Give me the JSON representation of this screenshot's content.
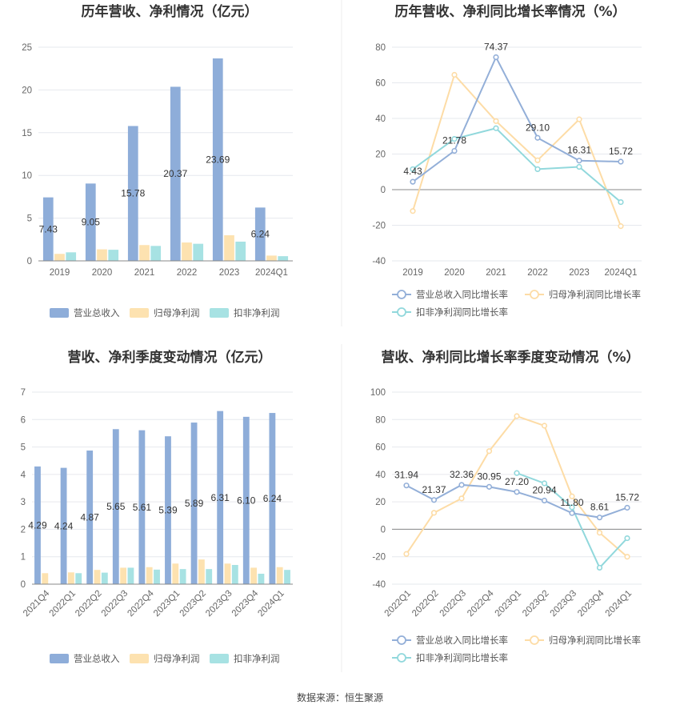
{
  "source_text": "数据来源：恒生聚源",
  "colors": {
    "revenue": "#8eadd9",
    "net_profit": "#fde2b0",
    "deducted": "#a7e2e3",
    "revenue_line": "#93afd8",
    "net_line": "#fddca6",
    "deducted_line": "#91d8dc",
    "grid": "#e6e8ee",
    "axis": "#888888"
  },
  "chart_data": [
    {
      "type": "bar",
      "title": "历年营收、净利情况（亿元）",
      "categories": [
        "2019",
        "2020",
        "2021",
        "2022",
        "2023",
        "2024Q1"
      ],
      "ylim": [
        0,
        25
      ],
      "yticks": [
        0,
        5,
        10,
        15,
        20,
        25
      ],
      "grid": true,
      "legend_position": "bottom",
      "series": [
        {
          "name": "营业总收入",
          "values": [
            7.43,
            9.05,
            15.78,
            20.37,
            23.69,
            6.24
          ],
          "labels": [
            "7.43",
            "9.05",
            "15.78",
            "20.37",
            "23.69",
            "6.24"
          ]
        },
        {
          "name": "归母净利润",
          "values": [
            0.82,
            1.35,
            1.85,
            2.15,
            3.0,
            0.62
          ]
        },
        {
          "name": "扣非净利润",
          "values": [
            1.0,
            1.3,
            1.75,
            2.0,
            2.25,
            0.55
          ]
        }
      ]
    },
    {
      "type": "line",
      "title": "历年营收、净利同比增长率情况（%）",
      "categories": [
        "2019",
        "2020",
        "2021",
        "2022",
        "2023",
        "2024Q1"
      ],
      "ylim": [
        -40,
        80
      ],
      "yticks": [
        -40,
        -20,
        0,
        20,
        40,
        60,
        80
      ],
      "grid": true,
      "legend_position": "bottom",
      "series": [
        {
          "name": "营业总收入同比增长率",
          "values": [
            4.43,
            21.78,
            74.37,
            29.1,
            16.31,
            15.72
          ],
          "labels": [
            "4.43",
            "21.78",
            "74.37",
            "29.10",
            "16.31",
            "15.72"
          ]
        },
        {
          "name": "归母净利润同比增长率",
          "values": [
            -12,
            64.5,
            38.5,
            16.5,
            39.5,
            -20.5
          ]
        },
        {
          "name": "扣非净利润同比增长率",
          "values": [
            11.5,
            28.5,
            34.5,
            11.5,
            12.8,
            -7
          ]
        }
      ]
    },
    {
      "type": "bar",
      "title": "营收、净利季度变动情况（亿元）",
      "categories": [
        "2021Q4",
        "2022Q1",
        "2022Q2",
        "2022Q3",
        "2022Q4",
        "2023Q1",
        "2023Q2",
        "2023Q3",
        "2023Q4",
        "2024Q1"
      ],
      "ylim": [
        0,
        7
      ],
      "yticks": [
        0,
        1,
        2,
        3,
        4,
        5,
        6,
        7
      ],
      "grid": true,
      "legend_position": "bottom",
      "series": [
        {
          "name": "营业总收入",
          "values": [
            4.29,
            4.24,
            4.87,
            5.65,
            5.61,
            5.39,
            5.89,
            6.31,
            6.1,
            6.24
          ],
          "labels": [
            "4.29",
            "4.24",
            "4.87",
            "5.65",
            "5.61",
            "5.39",
            "5.89",
            "6.31",
            "6.10",
            "6.24"
          ]
        },
        {
          "name": "归母净利润",
          "values": [
            0.4,
            0.43,
            0.52,
            0.6,
            0.62,
            0.75,
            0.9,
            0.75,
            0.6,
            0.62
          ]
        },
        {
          "name": "扣非净利润",
          "values": [
            0.0,
            0.4,
            0.42,
            0.6,
            0.53,
            0.55,
            0.55,
            0.7,
            0.38,
            0.52
          ]
        }
      ]
    },
    {
      "type": "line",
      "title": "营收、净利同比增长率季度变动情况（%）",
      "categories": [
        "2022Q1",
        "2022Q2",
        "2022Q3",
        "2022Q4",
        "2023Q1",
        "2023Q2",
        "2023Q3",
        "2023Q4",
        "2024Q1"
      ],
      "ylim": [
        -40,
        100
      ],
      "yticks": [
        -40,
        -20,
        0,
        20,
        40,
        60,
        80,
        100
      ],
      "grid": true,
      "legend_position": "bottom",
      "series": [
        {
          "name": "营业总收入同比增长率",
          "values": [
            31.94,
            21.37,
            32.36,
            30.95,
            27.2,
            20.94,
            11.8,
            8.61,
            15.72
          ],
          "labels": [
            "31.94",
            "21.37",
            "32.36",
            "30.95",
            "27.20",
            "20.94",
            "11.80",
            "8.61",
            "15.72"
          ]
        },
        {
          "name": "归母净利润同比增长率",
          "values": [
            -18,
            12,
            22.5,
            57,
            82.5,
            75.5,
            24,
            -2.5,
            -20
          ]
        },
        {
          "name": "扣非净利润同比增长率",
          "values": [
            null,
            null,
            null,
            null,
            41,
            33.5,
            16,
            -28,
            -6.5
          ]
        }
      ]
    }
  ]
}
